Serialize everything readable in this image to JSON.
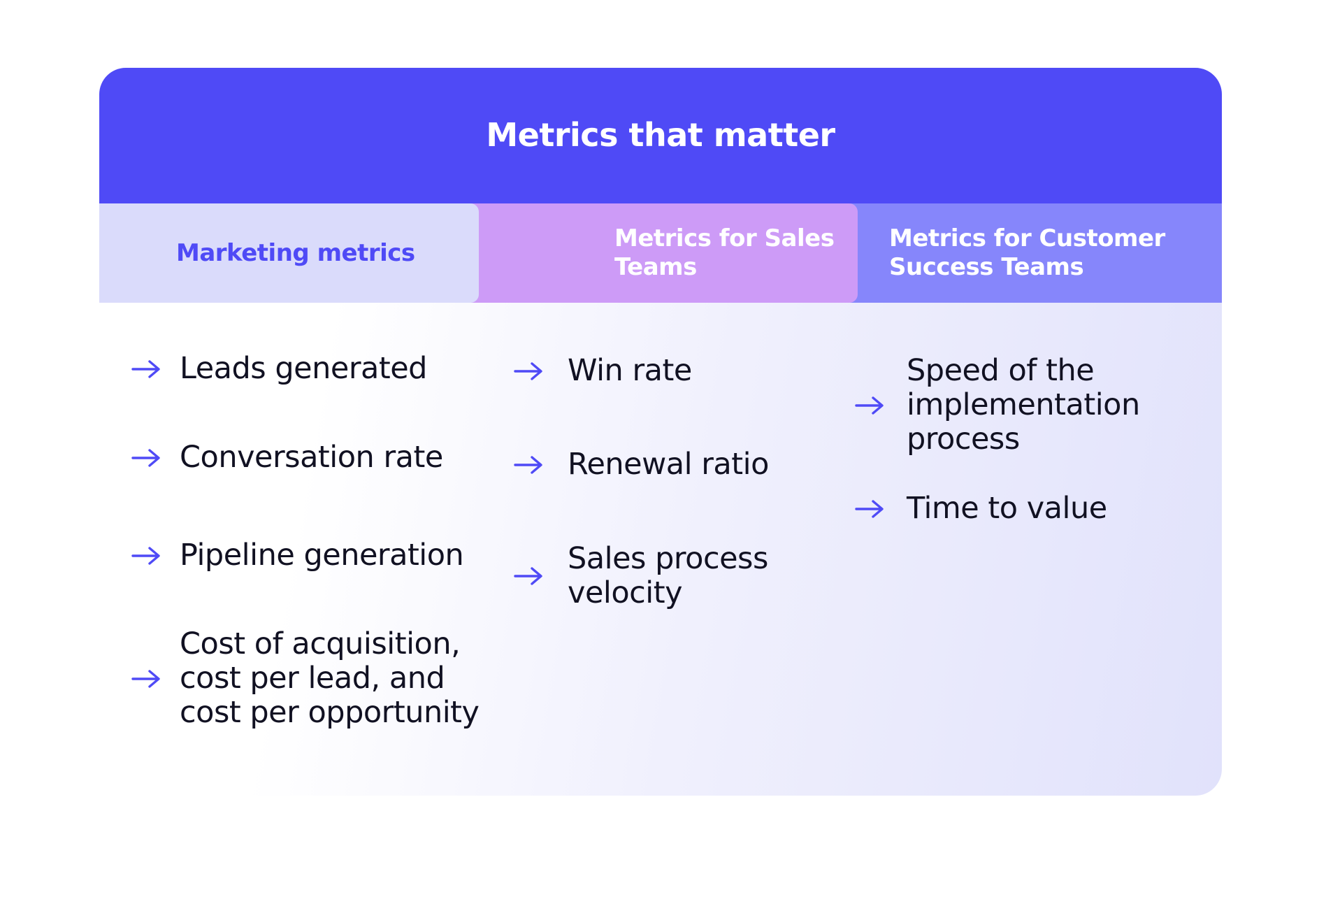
{
  "title": "Metrics that matter",
  "columns": [
    {
      "header": "Marketing metrics",
      "items": [
        "Leads generated",
        "Conversation rate",
        "Pipeline generation",
        "Cost of acquisition,\ncost per lead, and\ncost per opportunity"
      ]
    },
    {
      "header": "Metrics for Sales Teams",
      "items": [
        "Win rate",
        "Renewal ratio",
        "Sales process\nvelocity"
      ]
    },
    {
      "header": "Metrics for Customer\nSuccess Teams",
      "items": [
        "Speed of the\nimplementation\nprocess",
        "Time to value"
      ]
    }
  ],
  "colors": {
    "title_bar": "#4f4af6",
    "marketing_tab": "#dadbfb",
    "sales_tab": "#cd9bf7",
    "customer_success_tab": "#8686fb",
    "arrow": "#4f4af6"
  },
  "icons": {
    "bullet": "arrow-right-icon"
  }
}
